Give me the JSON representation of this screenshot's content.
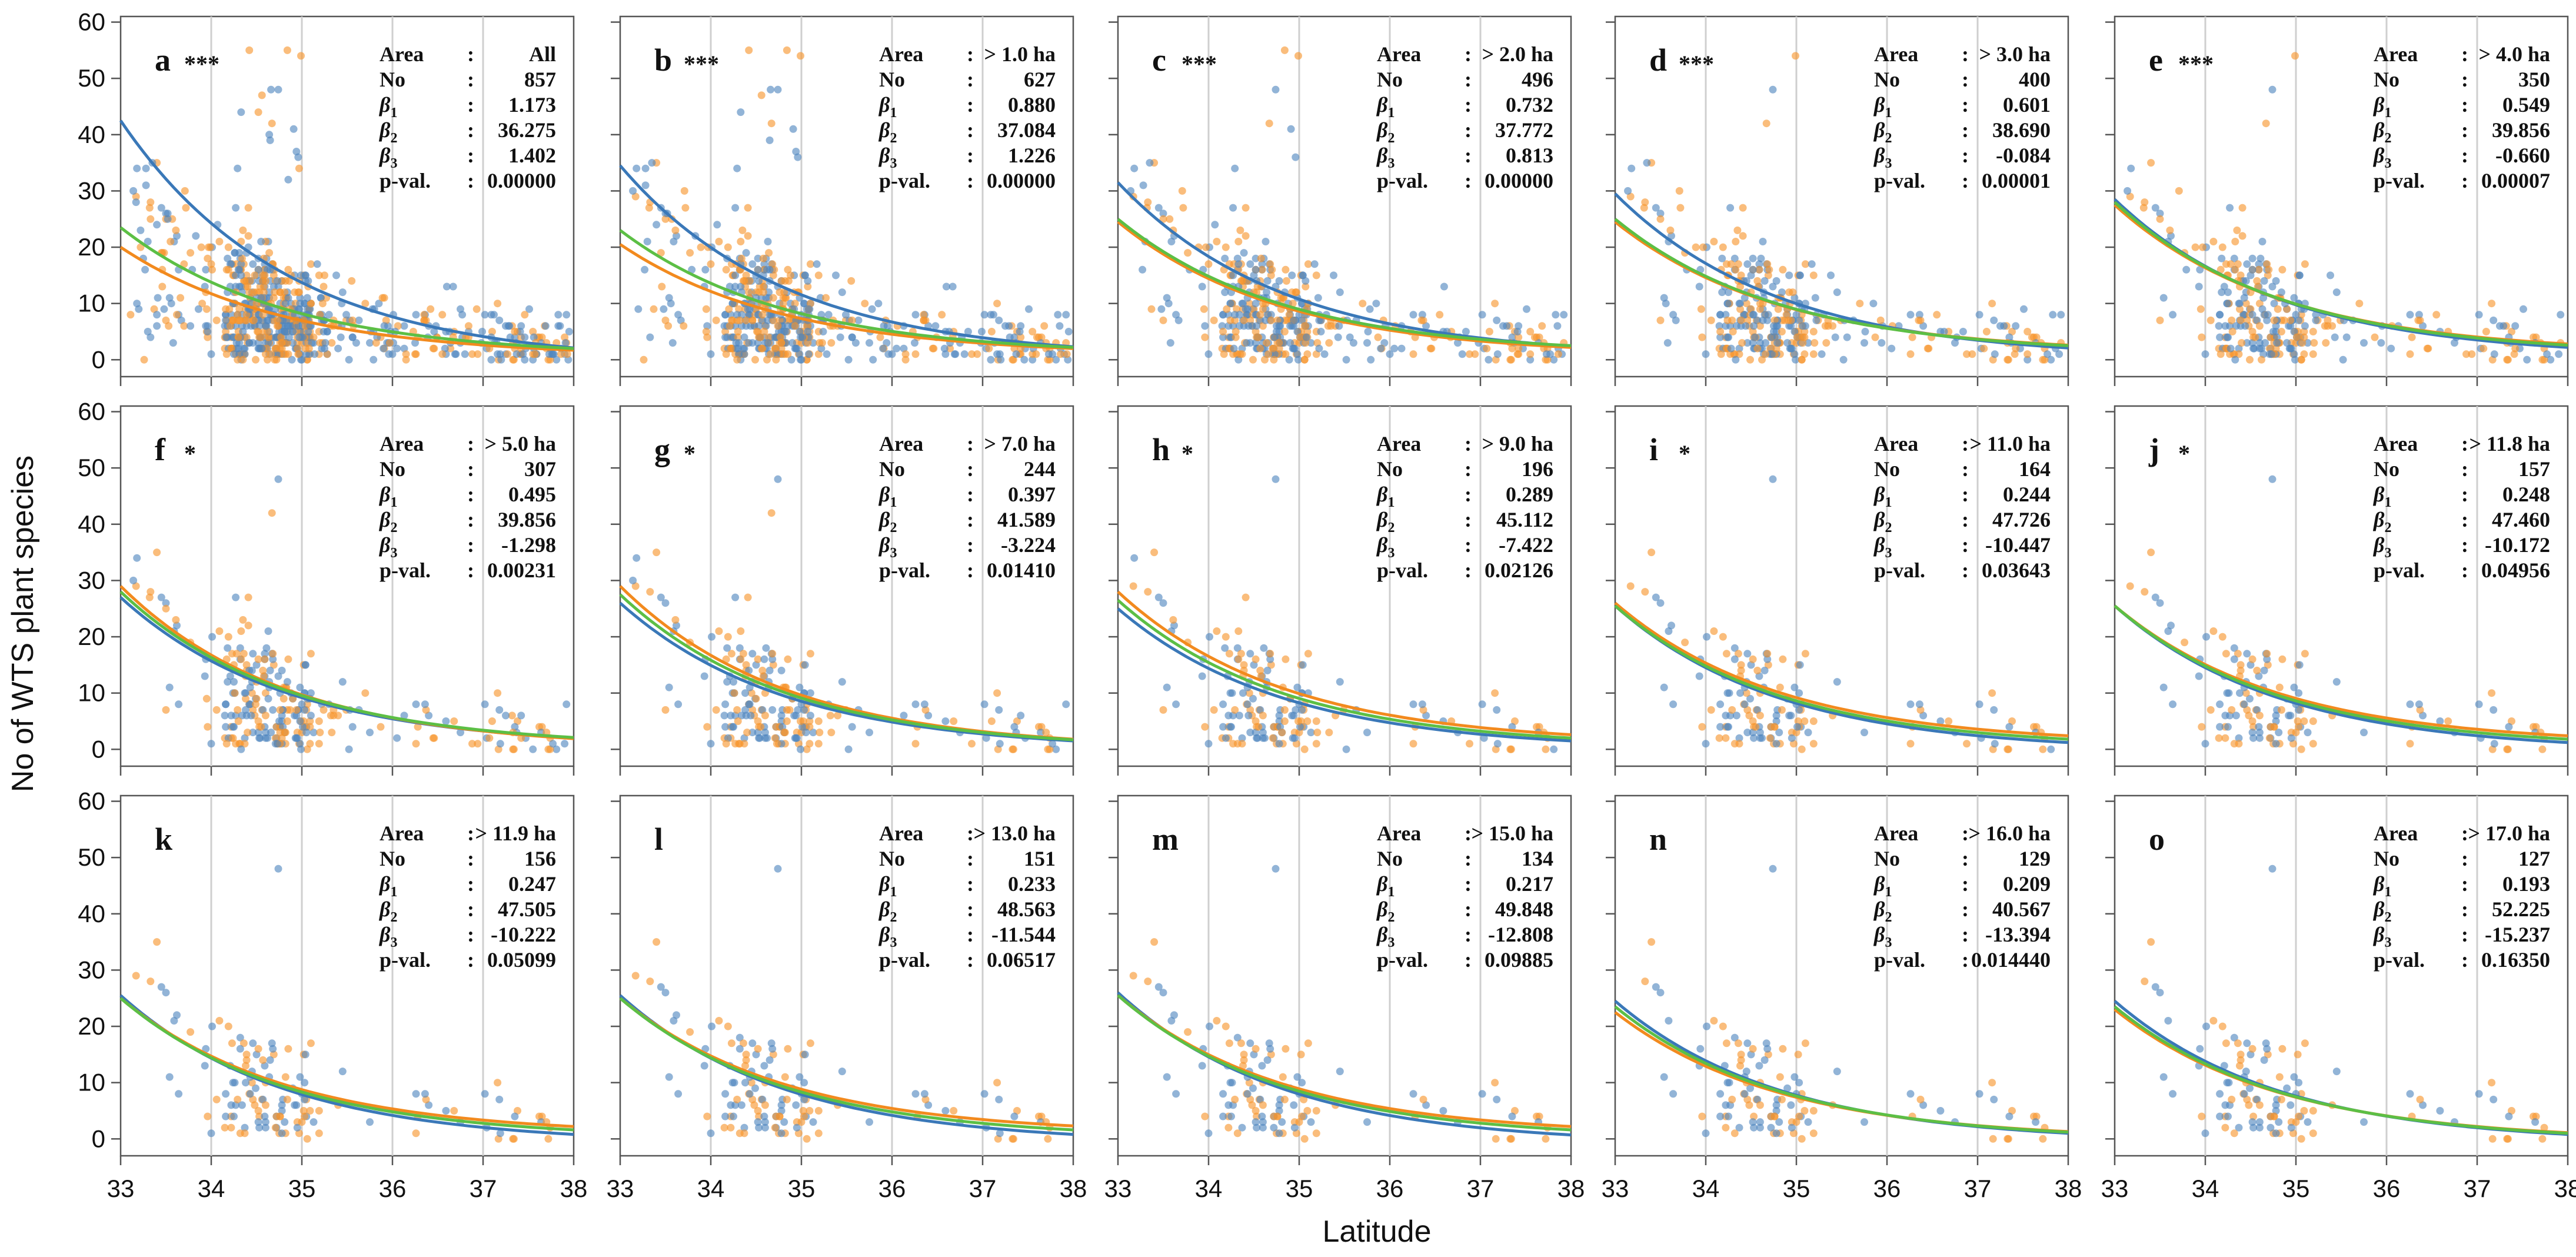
{
  "chart_data": {
    "type": "scatter",
    "xlabel": "Latitude",
    "ylabel": "No of WTS plant species",
    "xlim": [
      33,
      38
    ],
    "ylim": [
      0,
      60
    ],
    "x_ticks": [
      "33",
      "34",
      "35",
      "36",
      "37",
      "38"
    ],
    "y_ticks": [
      "0",
      "10",
      "20",
      "30",
      "40",
      "50",
      "60"
    ],
    "grid_vertical": [
      34,
      35,
      36,
      37
    ],
    "colors": {
      "blue": "#4f86bf",
      "orange": "#f7952b",
      "green": "#5cbf45",
      "curve_blue": "#3a78b8",
      "curve_orange": "#f28a1e",
      "grid": "#cfcfcf"
    },
    "stat_labels": {
      "area": "Area",
      "no": "No",
      "b1": "β",
      "b1_sub": "1",
      "b2": "β",
      "b2_sub": "2",
      "b3": "β",
      "b3_sub": "3",
      "pval": "p-val.",
      "sep": ":"
    },
    "panels": [
      {
        "label": "a",
        "stars": "***",
        "area": "All",
        "no": "857",
        "b1": "1.173",
        "b2": "36.275",
        "b3": "1.402",
        "pval": "0.00000",
        "curves": {
          "blue": [
            42.5,
            2.1
          ],
          "orange": [
            20,
            1.7
          ],
          "green": [
            23.5,
            2.0
          ]
        }
      },
      {
        "label": "b",
        "stars": "***",
        "area": "> 1.0 ha",
        "no": "627",
        "b1": "0.880",
        "b2": "37.084",
        "b3": "1.226",
        "pval": "0.00000",
        "curves": {
          "blue": [
            34.5,
            2.3
          ],
          "orange": [
            20.5,
            2.0
          ],
          "green": [
            23,
            2.2
          ]
        }
      },
      {
        "label": "c",
        "stars": "***",
        "area": "> 2.0 ha",
        "no": "496",
        "b1": "0.732",
        "b2": "37.772",
        "b3": "0.813",
        "pval": "0.00000",
        "curves": {
          "blue": [
            31.5,
            2.4
          ],
          "orange": [
            24.5,
            2.2
          ],
          "green": [
            25,
            2.5
          ]
        }
      },
      {
        "label": "d",
        "stars": "***",
        "area": "> 3.0 ha",
        "no": "400",
        "b1": "0.601",
        "b2": "38.690",
        "b3": "-0.084",
        "pval": "0.00001",
        "curves": {
          "blue": [
            29.5,
            2.1
          ],
          "orange": [
            24.5,
            2.6
          ],
          "green": [
            25,
            2.5
          ]
        }
      },
      {
        "label": "e",
        "stars": "***",
        "area": "> 4.0 ha",
        "no": "350",
        "b1": "0.549",
        "b2": "39.856",
        "b3": "-0.660",
        "pval": "0.00007",
        "curves": {
          "blue": [
            28.5,
            2.2
          ],
          "orange": [
            27.5,
            2.8
          ],
          "green": [
            28,
            2.6
          ]
        }
      },
      {
        "label": "f",
        "stars": "*",
        "area": "> 5.0 ha",
        "no": "307",
        "b1": "0.495",
        "b2": "39.856",
        "b3": "-1.298",
        "pval": "0.00231",
        "curves": {
          "blue": [
            27,
            2.0
          ],
          "orange": [
            29,
            1.9
          ],
          "green": [
            28,
            2.1
          ]
        }
      },
      {
        "label": "g",
        "stars": "*",
        "area": "> 7.0 ha",
        "no": "244",
        "b1": "0.397",
        "b2": "41.589",
        "b3": "-3.224",
        "pval": "0.01410",
        "curves": {
          "blue": [
            26,
            1.5
          ],
          "orange": [
            29,
            1.8
          ],
          "green": [
            27.5,
            1.7
          ]
        }
      },
      {
        "label": "h",
        "stars": "*",
        "area": "> 9.0 ha",
        "no": "196",
        "b1": "0.289",
        "b2": "45.112",
        "b3": "-7.422",
        "pval": "0.02126",
        "curves": {
          "blue": [
            25,
            1.5
          ],
          "orange": [
            28,
            2.6
          ],
          "green": [
            26.5,
            2.0
          ]
        }
      },
      {
        "label": "i",
        "stars": "*",
        "area": "> 11.0 ha",
        "no": "164",
        "b1": "0.244",
        "b2": "47.726",
        "b3": "-10.447",
        "pval": "0.03643",
        "curves": {
          "blue": [
            25.5,
            1.2
          ],
          "orange": [
            26,
            2.4
          ],
          "green": [
            25.5,
            1.8
          ]
        }
      },
      {
        "label": "j",
        "stars": "*",
        "area": "> 11.8 ha",
        "no": "157",
        "b1": "0.248",
        "b2": "47.460",
        "b3": "-10.172",
        "pval": "0.04956",
        "curves": {
          "blue": [
            25.5,
            1.2
          ],
          "orange": [
            25.5,
            2.4
          ],
          "green": [
            25.5,
            1.8
          ]
        }
      },
      {
        "label": "k",
        "stars": "",
        "area": "> 11.9 ha",
        "no": "156",
        "b1": "0.247",
        "b2": "47.505",
        "b3": "-10.222",
        "pval": "0.05099",
        "curves": {
          "blue": [
            25.5,
            0.8
          ],
          "orange": [
            25,
            2.2
          ],
          "green": [
            25,
            1.6
          ]
        }
      },
      {
        "label": "l",
        "stars": "",
        "area": "> 13.0 ha",
        "no": "151",
        "b1": "0.233",
        "b2": "48.563",
        "b3": "-11.544",
        "pval": "0.06517",
        "curves": {
          "blue": [
            25.5,
            0.8
          ],
          "orange": [
            25,
            2.3
          ],
          "green": [
            25,
            1.6
          ]
        }
      },
      {
        "label": "m",
        "stars": "",
        "area": "> 15.0 ha",
        "no": "134",
        "b1": "0.217",
        "b2": "49.848",
        "b3": "-12.808",
        "pval": "0.09885",
        "curves": {
          "blue": [
            26,
            0.7
          ],
          "orange": [
            25.5,
            2.2
          ],
          "green": [
            25.5,
            1.6
          ]
        }
      },
      {
        "label": "n",
        "stars": "",
        "area": "> 16.0 ha",
        "no": "129",
        "b1": "0.209",
        "b2": "40.567",
        "b3": "-13.394",
        "pval": "0.014440",
        "curves": {
          "blue": [
            24.5,
            1.0
          ],
          "orange": [
            22.5,
            1.3
          ],
          "green": [
            23.5,
            1.2
          ]
        }
      },
      {
        "label": "o",
        "stars": "",
        "area": "> 17.0 ha",
        "no": "127",
        "b1": "0.193",
        "b2": "52.225",
        "b3": "-15.237",
        "pval": "0.16350",
        "curves": {
          "blue": [
            24.5,
            0.8
          ],
          "orange": [
            23,
            1.1
          ],
          "green": [
            23.5,
            1.0
          ]
        }
      }
    ]
  }
}
